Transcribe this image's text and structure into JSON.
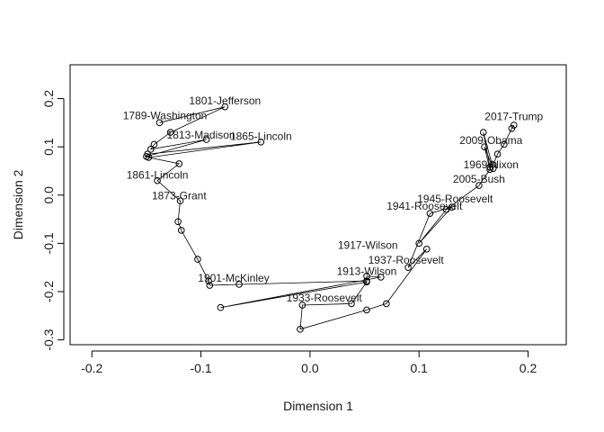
{
  "chart_data": {
    "type": "line",
    "title": "",
    "xlabel": "Dimension 1",
    "ylabel": "Dimension 2",
    "xlim": [
      -0.22,
      0.235
    ],
    "ylim": [
      -0.31,
      0.27
    ],
    "xticks": [
      -0.2,
      -0.1,
      0.0,
      0.1,
      0.2
    ],
    "xtick_labels": [
      "-0.2",
      "-0.1",
      "0.0",
      "0.1",
      "0.2"
    ],
    "yticks": [
      -0.3,
      -0.2,
      -0.1,
      0.0,
      0.1,
      0.2
    ],
    "ytick_labels": [
      "-0.3",
      "-0.2",
      "-0.1",
      "0.0",
      "0.1",
      "0.2"
    ],
    "grid": false,
    "series": [
      {
        "marker": "open-circle",
        "connected": true,
        "points": [
          [
            -0.138,
            0.15
          ],
          [
            -0.078,
            0.183
          ],
          [
            -0.128,
            0.13
          ],
          [
            -0.143,
            0.105
          ],
          [
            -0.146,
            0.095
          ],
          [
            -0.095,
            0.115
          ],
          [
            -0.15,
            0.08
          ],
          [
            -0.149,
            0.085
          ],
          [
            -0.045,
            0.11
          ],
          [
            -0.148,
            0.078
          ],
          [
            -0.12,
            0.065
          ],
          [
            -0.14,
            0.03
          ],
          [
            -0.119,
            -0.012
          ],
          [
            -0.121,
            -0.055
          ],
          [
            -0.118,
            -0.073
          ],
          [
            -0.103,
            -0.133
          ],
          [
            -0.093,
            -0.178
          ],
          [
            -0.092,
            -0.187
          ],
          [
            -0.065,
            -0.185
          ],
          [
            0.052,
            -0.178
          ],
          [
            0.052,
            -0.168
          ],
          [
            0.065,
            -0.17
          ],
          [
            -0.082,
            -0.233
          ],
          [
            0.052,
            -0.18
          ],
          [
            0.038,
            -0.225
          ],
          [
            -0.007,
            -0.228
          ],
          [
            -0.009,
            -0.278
          ],
          [
            0.052,
            -0.238
          ],
          [
            0.07,
            -0.225
          ],
          [
            0.107,
            -0.112
          ],
          [
            0.09,
            -0.15
          ],
          [
            0.11,
            -0.038
          ],
          [
            0.13,
            -0.025
          ],
          [
            0.1,
            -0.1
          ],
          [
            0.125,
            -0.03
          ],
          [
            0.155,
            0.02
          ],
          [
            0.165,
            0.053
          ],
          [
            0.16,
            0.1
          ],
          [
            0.168,
            0.055
          ],
          [
            0.159,
            0.13
          ],
          [
            0.165,
            0.058
          ],
          [
            0.168,
            0.063
          ],
          [
            0.172,
            0.085
          ],
          [
            0.178,
            0.105
          ],
          [
            0.185,
            0.138
          ],
          [
            0.187,
            0.145
          ]
        ]
      }
    ],
    "annotations": [
      {
        "text": "1789-Washington",
        "x": -0.133,
        "y": 0.165
      },
      {
        "text": "1801-Jefferson",
        "x": -0.078,
        "y": 0.195
      },
      {
        "text": "1813-Madison",
        "x": -0.1,
        "y": 0.125
      },
      {
        "text": "1865-Lincoln",
        "x": -0.045,
        "y": 0.122
      },
      {
        "text": "1861-Lincoln",
        "x": -0.14,
        "y": 0.042
      },
      {
        "text": "1873-Grant",
        "x": -0.12,
        "y": -0.001
      },
      {
        "text": "1901-McKinley",
        "x": -0.07,
        "y": -0.172
      },
      {
        "text": "1917-Wilson",
        "x": 0.053,
        "y": -0.104
      },
      {
        "text": "1937-Roosevelt",
        "x": 0.088,
        "y": -0.135
      },
      {
        "text": "1913-Wilson",
        "x": 0.052,
        "y": -0.158
      },
      {
        "text": "1933-Roosevelt",
        "x": 0.013,
        "y": -0.213
      },
      {
        "text": "1945-Roosevelt",
        "x": 0.133,
        "y": -0.008
      },
      {
        "text": "1941-Roosevelt",
        "x": 0.105,
        "y": -0.023
      },
      {
        "text": "2017-Trump",
        "x": 0.187,
        "y": 0.163
      },
      {
        "text": "2009-Obama",
        "x": 0.166,
        "y": 0.113
      },
      {
        "text": "1969-Nixon",
        "x": 0.166,
        "y": 0.063
      },
      {
        "text": "2005-Bush",
        "x": 0.155,
        "y": 0.033
      }
    ]
  }
}
